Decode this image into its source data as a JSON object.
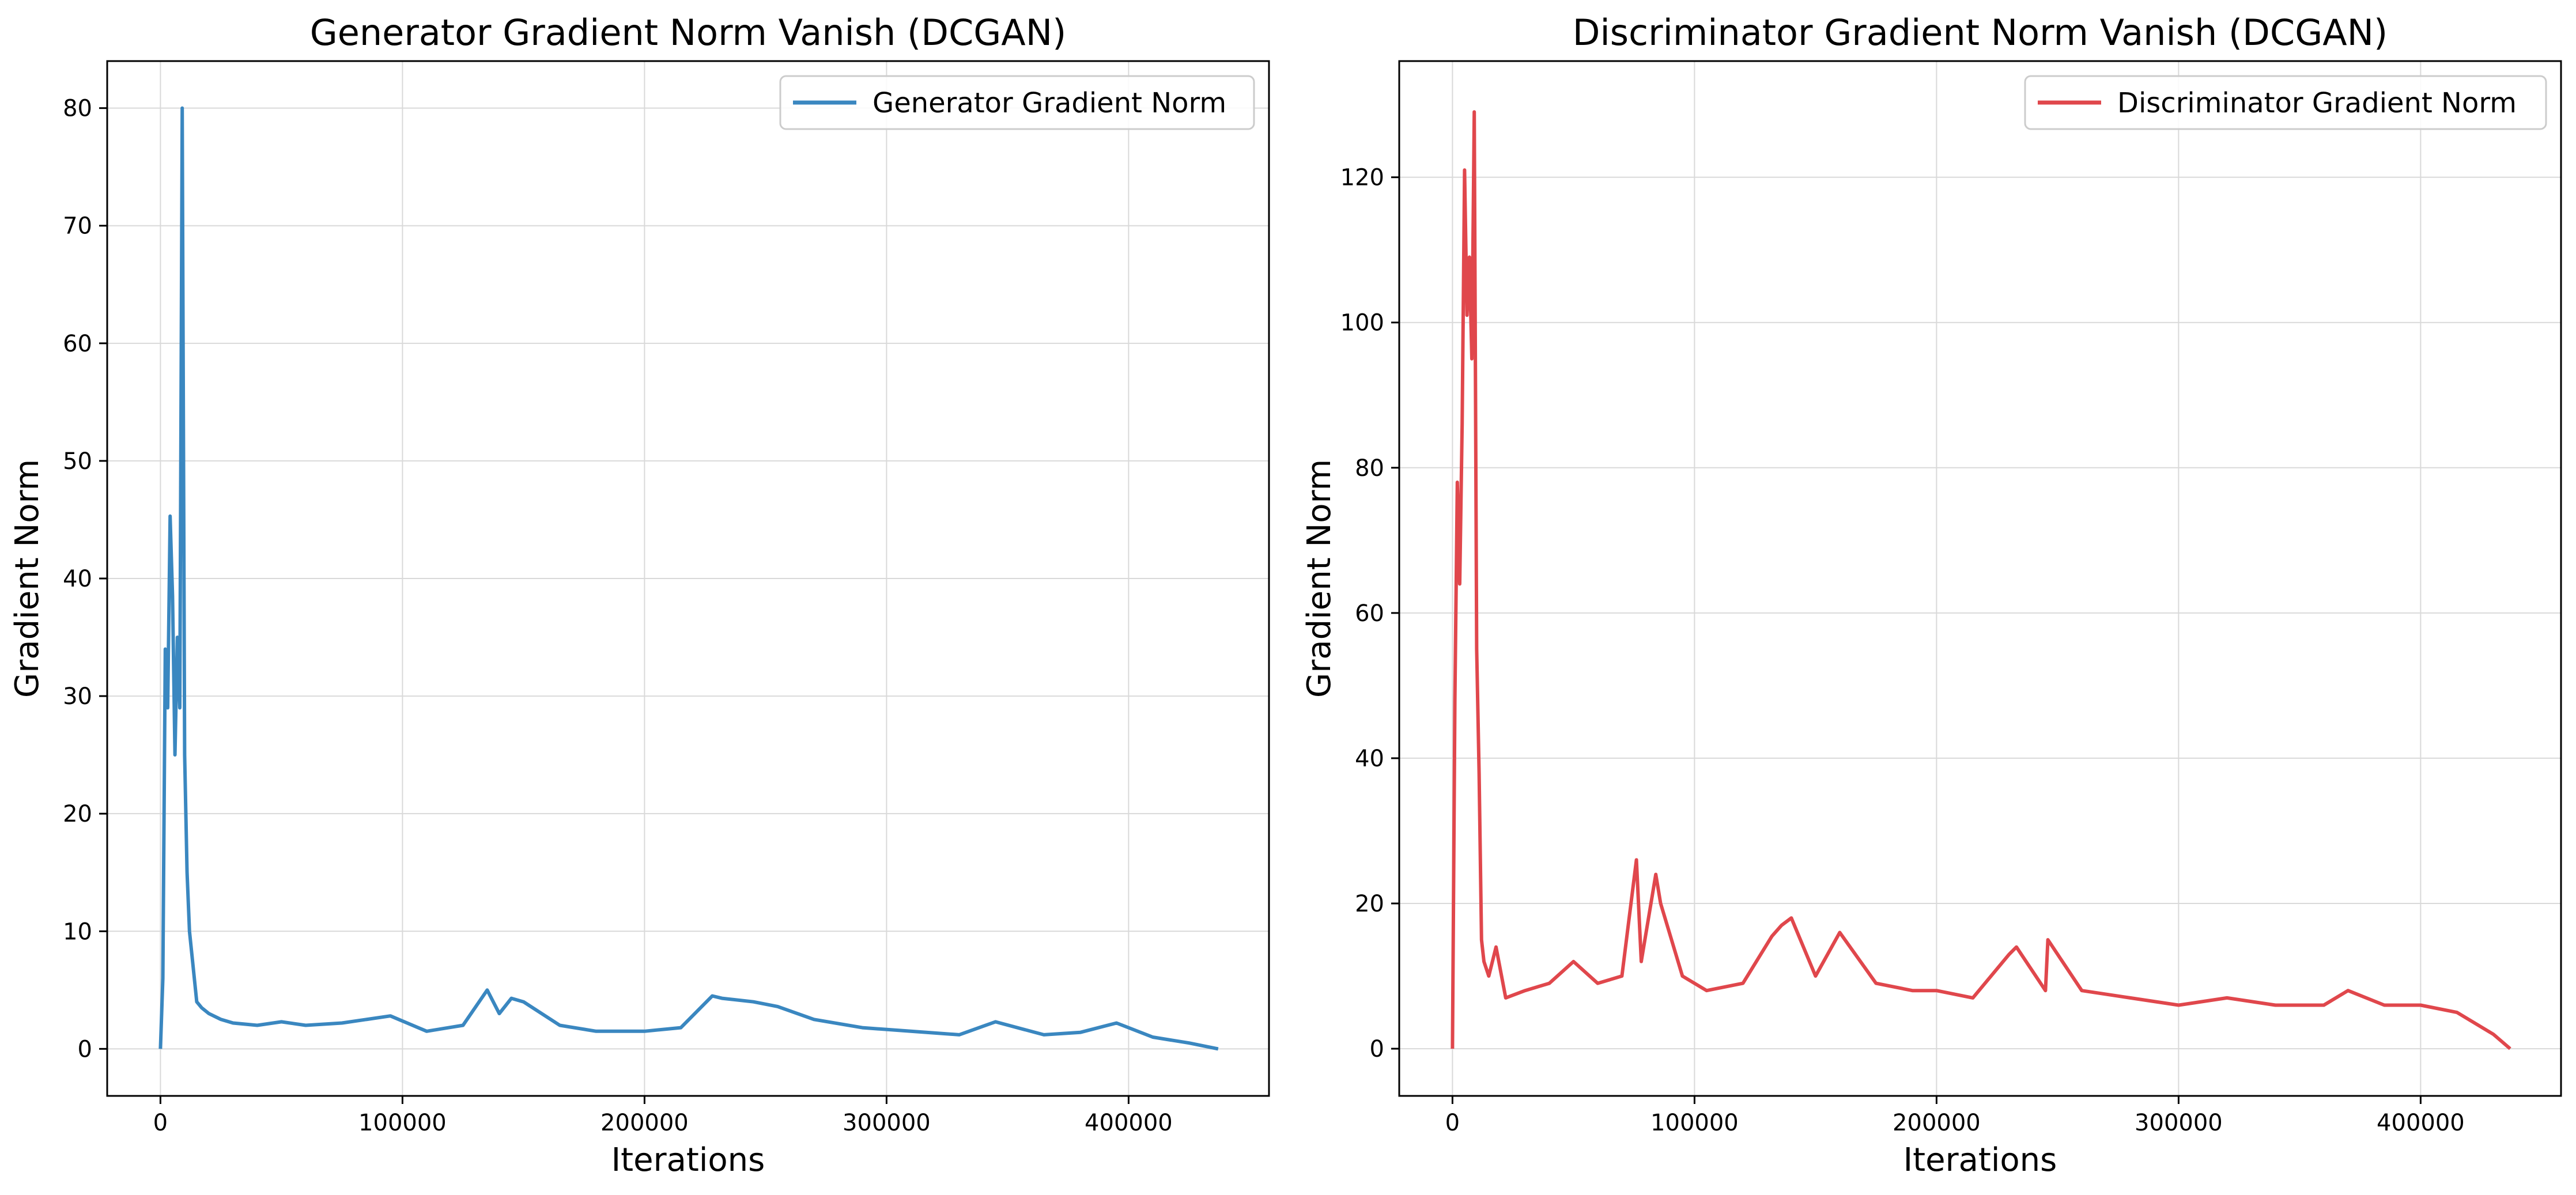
{
  "chart_data": [
    {
      "type": "line",
      "title": "Generator Gradient Norm Vanish (DCGAN)",
      "xlabel": "Iterations",
      "ylabel": "Gradient Norm",
      "xlim": [
        -22000,
        458000
      ],
      "ylim": [
        -4,
        84
      ],
      "xticks": [
        0,
        100000,
        200000,
        300000,
        400000
      ],
      "xtick_labels": [
        "0",
        "100000",
        "200000",
        "300000",
        "400000"
      ],
      "yticks": [
        0,
        10,
        20,
        30,
        40,
        50,
        60,
        70,
        80
      ],
      "ytick_labels": [
        "0",
        "10",
        "20",
        "30",
        "40",
        "50",
        "60",
        "70",
        "80"
      ],
      "grid": true,
      "legend_position": "top-right",
      "series": [
        {
          "name": "Generator Gradient Norm",
          "color": "#3a87c0",
          "x": [
            0,
            1000,
            2000,
            3000,
            4000,
            5000,
            6000,
            7000,
            8000,
            9000,
            10000,
            11000,
            12000,
            13000,
            14000,
            15000,
            17000,
            20000,
            25000,
            30000,
            40000,
            50000,
            60000,
            75000,
            95000,
            110000,
            125000,
            135000,
            140000,
            145000,
            150000,
            165000,
            180000,
            200000,
            215000,
            228000,
            232000,
            245000,
            255000,
            270000,
            290000,
            310000,
            330000,
            345000,
            365000,
            380000,
            395000,
            410000,
            425000,
            437000
          ],
          "y": [
            0,
            6,
            34,
            29,
            45.3,
            38.5,
            25,
            35,
            29,
            80,
            25,
            15,
            10,
            8,
            6,
            4,
            3.5,
            3,
            2.5,
            2.2,
            2,
            2.3,
            2,
            2.2,
            2.8,
            1.5,
            2,
            5,
            3,
            4.3,
            4,
            2,
            1.5,
            1.5,
            1.8,
            4.5,
            4.3,
            4,
            3.6,
            2.5,
            1.8,
            1.5,
            1.2,
            2.3,
            1.2,
            1.4,
            2.2,
            1,
            0.5,
            0
          ]
        }
      ]
    },
    {
      "type": "line",
      "title": "Discriminator Gradient Norm Vanish (DCGAN)",
      "xlabel": "Iterations",
      "ylabel": "Gradient Norm",
      "xlim": [
        -22000,
        458000
      ],
      "ylim": [
        -6.5,
        136
      ],
      "xticks": [
        0,
        100000,
        200000,
        300000,
        400000
      ],
      "xtick_labels": [
        "0",
        "100000",
        "200000",
        "300000",
        "400000"
      ],
      "yticks": [
        0,
        20,
        40,
        60,
        80,
        100,
        120
      ],
      "ytick_labels": [
        "0",
        "20",
        "40",
        "60",
        "80",
        "100",
        "120"
      ],
      "grid": true,
      "legend_position": "top-right",
      "series": [
        {
          "name": "Discriminator Gradient Norm",
          "color": "#e0474c",
          "x": [
            0,
            1000,
            2000,
            3000,
            4000,
            5000,
            6000,
            7000,
            8000,
            9000,
            10000,
            11000,
            12000,
            13000,
            15000,
            18000,
            22000,
            30000,
            40000,
            50000,
            60000,
            70000,
            76000,
            78000,
            84000,
            86000,
            95000,
            105000,
            120000,
            132000,
            136000,
            140000,
            150000,
            160000,
            175000,
            190000,
            200000,
            215000,
            230000,
            233000,
            245000,
            246000,
            260000,
            280000,
            300000,
            320000,
            340000,
            360000,
            370000,
            385000,
            400000,
            415000,
            430000,
            437000
          ],
          "y": [
            0,
            48,
            78,
            64,
            86,
            121,
            101,
            109,
            95,
            129,
            55,
            38,
            15,
            12,
            10,
            14,
            7,
            8,
            9,
            12,
            9,
            10,
            26,
            12,
            24,
            20,
            10,
            8,
            9,
            15.5,
            17,
            18,
            10,
            16,
            9,
            8,
            8,
            7,
            13,
            14,
            8,
            15,
            8,
            7,
            6,
            7,
            6,
            6,
            8,
            6,
            6,
            5,
            2,
            0
          ]
        }
      ]
    }
  ]
}
